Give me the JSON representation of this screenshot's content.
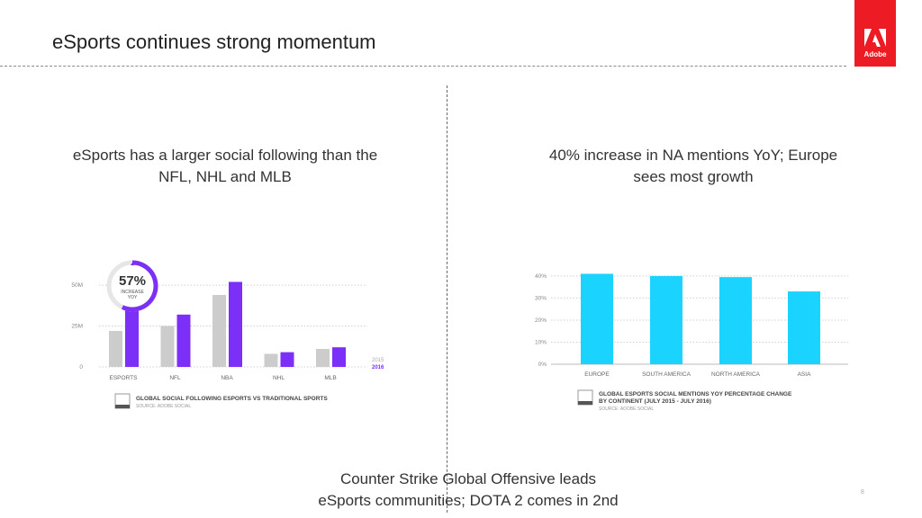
{
  "slide": {
    "title": "eSports continues strong momentum",
    "page_number": "8",
    "footer_line1": "Counter Strike Global Offensive leads",
    "footer_line2": "eSports communities; DOTA 2 comes in 2nd"
  },
  "logo": {
    "text": "Adobe",
    "color": "#ed1c24",
    "icon": "adobe-logo-icon"
  },
  "left": {
    "heading_line1": "eSports has a larger social following than the",
    "heading_line2": "NFL, NHL and MLB",
    "badge": {
      "percent": "57%",
      "line1": "INCREASE",
      "line2": "YOY",
      "progress": 0.57
    },
    "legend_title": "GLOBAL SOCIAL FOLLOWING ESPORTS VS TRADITIONAL SPORTS",
    "legend_source": "SOURCE: ADOBE SOCIAL",
    "year_2015": "2015",
    "year_2016": "2016"
  },
  "right": {
    "heading_line1": "40% increase in NA mentions YoY; Europe",
    "heading_line2": "sees most growth",
    "legend_title_line1": "GLOBAL ESPORTS SOCIAL MENTIONS YOY PERCENTAGE CHANGE",
    "legend_title_line2": "BY CONTINENT (JULY 2015 - JULY 2016)",
    "legend_source": "SOURCE: ADOBE SOCIAL"
  },
  "chart_data": [
    {
      "type": "bar",
      "categories": [
        "ESPORTS",
        "NFL",
        "NBA",
        "NHL",
        "MLB"
      ],
      "series": [
        {
          "name": "2015",
          "values": [
            22,
            25,
            44,
            8,
            11
          ],
          "color": "#cccccc"
        },
        {
          "name": "2016",
          "values": [
            35,
            32,
            52,
            9,
            12
          ],
          "color": "#7b2ff7"
        }
      ],
      "yticks": [
        "0",
        "25M",
        "50M"
      ],
      "ylim": [
        0,
        55
      ],
      "legend": "bottom-right"
    },
    {
      "type": "bar",
      "categories": [
        "EUROPE",
        "SOUTH AMERICA",
        "NORTH AMERICA",
        "ASIA"
      ],
      "values": [
        41,
        40,
        39.5,
        33
      ],
      "color": "#1ad3ff",
      "yticks": [
        "0%",
        "10%",
        "20%",
        "30%",
        "40%"
      ],
      "ylim": [
        0,
        42
      ]
    }
  ]
}
